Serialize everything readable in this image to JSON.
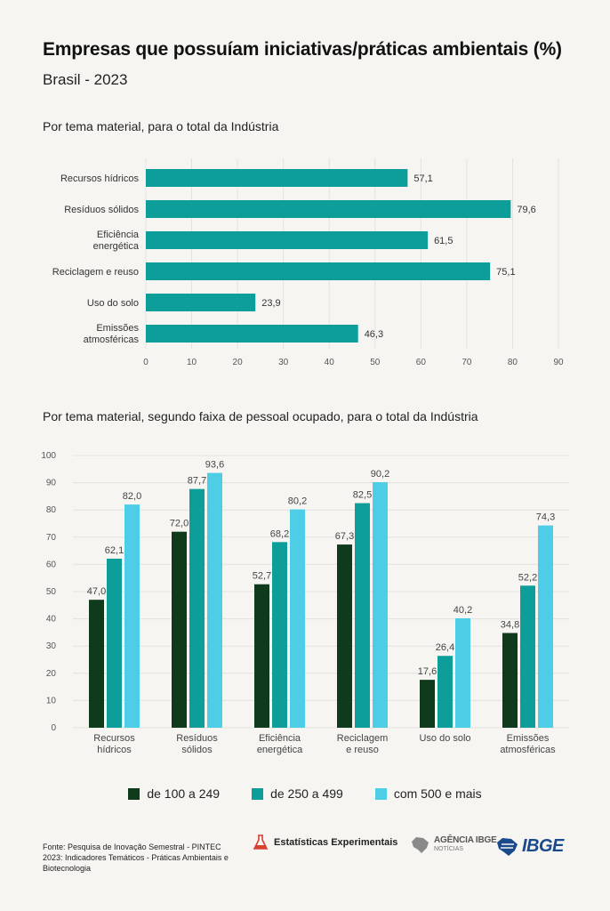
{
  "header": {
    "title": "Empresas que possuíam iniciativas/práticas ambientais (%)",
    "subtitle": "Brasil - 2023"
  },
  "colors": {
    "teal": "#0e9e9a",
    "dark_green": "#0f3a1c",
    "light_blue": "#4ecde6",
    "gridline": "#e4e2dd"
  },
  "chart_data": [
    {
      "type": "bar",
      "orientation": "horizontal",
      "title": "Por tema material, para o total da Indústria",
      "categories": [
        "Recursos hídricos",
        "Resíduos sólidos",
        "Eficiência energética",
        "Reciclagem e reuso",
        "Uso do solo",
        "Emissões atmosféricas"
      ],
      "values": [
        57.1,
        79.6,
        61.5,
        75.1,
        23.9,
        46.3
      ],
      "value_labels": [
        "57,1",
        "79,6",
        "61,5",
        "75,1",
        "23,9",
        "46,3"
      ],
      "xlim": [
        0,
        90
      ],
      "ticks": [
        0,
        10,
        20,
        30,
        40,
        50,
        60,
        70,
        80,
        90
      ],
      "grid": true
    },
    {
      "type": "bar",
      "orientation": "vertical",
      "title": "Por tema material, segundo faixa de pessoal ocupado, para o total da Indústria",
      "categories": [
        "Recursos hídricos",
        "Resíduos sólidos",
        "Eficiência energética",
        "Reciclagem e reuso",
        "Uso do solo",
        "Emissões atmosféricas"
      ],
      "series": [
        {
          "name": "de 100 a 249",
          "values": [
            47.0,
            72.0,
            52.7,
            67.3,
            17.6,
            34.8
          ],
          "labels": [
            "47,0",
            "72,0",
            "52,7",
            "67,3",
            "17,6",
            "34,8"
          ]
        },
        {
          "name": "de 250 a 499",
          "values": [
            62.1,
            87.7,
            68.2,
            82.5,
            26.4,
            52.2
          ],
          "labels": [
            "62,1",
            "87,7",
            "68,2",
            "82,5",
            "26,4",
            "52,2"
          ]
        },
        {
          "name": "com 500 e mais",
          "values": [
            82.0,
            93.6,
            80.2,
            90.2,
            40.2,
            74.3
          ],
          "labels": [
            "82,0",
            "93,6",
            "80,2",
            "90,2",
            "40,2",
            "74,3"
          ]
        }
      ],
      "ylim": [
        0,
        100
      ],
      "ticks": [
        0,
        10,
        20,
        30,
        40,
        50,
        60,
        70,
        80,
        90,
        100
      ],
      "grid": true,
      "legend": "bottom"
    }
  ],
  "footer": {
    "source": "Fonte: Pesquisa de Inovação Semestral - PINTEC 2023: Indicadores Temáticos - Práticas Ambientais e Biotecnologia",
    "logo_experimentais": "Estatísticas Experimentais",
    "logo_agencia_main": "AGÊNCIA IBGE",
    "logo_agencia_sub": "NOTÍCIAS",
    "logo_ibge": "IBGE",
    "icons": [
      "experimental-icon",
      "agencia-map-icon",
      "ibge-map-icon"
    ]
  }
}
